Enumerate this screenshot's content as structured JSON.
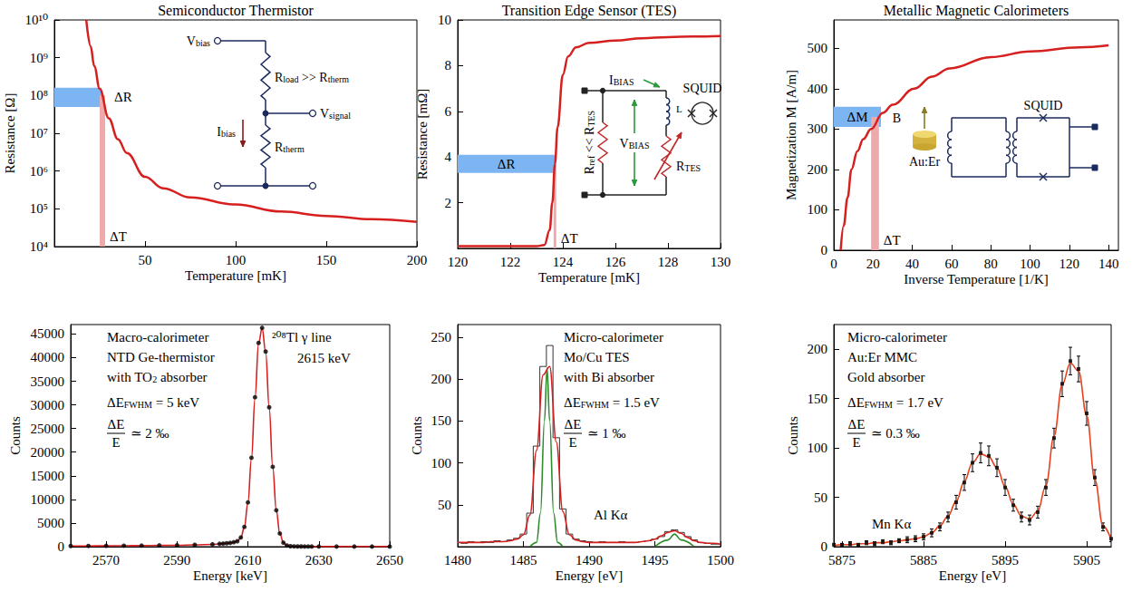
{
  "chart_data": [
    {
      "type": "line",
      "title": "Semiconductor Thermistor",
      "x_label": "Temperature [mK]",
      "y_label": "Resistance [Ω]",
      "log": "y",
      "grid": false,
      "xlim": [
        0,
        200
      ],
      "xticks": [
        50,
        100,
        150,
        200
      ],
      "ylim": [
        10000,
        10000000000
      ],
      "yticks": [
        {
          "value": 10000,
          "label": "10⁴"
        },
        {
          "value": 100000,
          "label": "10⁵"
        },
        {
          "value": 1000000,
          "label": "10⁶"
        },
        {
          "value": 10000000,
          "label": "10⁷"
        },
        {
          "value": 100000000,
          "label": "10⁸"
        },
        {
          "value": 1000000000,
          "label": "10⁹"
        },
        {
          "value": 10000000000,
          "label": "10¹⁰"
        }
      ],
      "series": [
        {
          "type": "line",
          "color": "#d62020",
          "x": [
            17.6,
            20,
            22,
            25,
            30,
            35,
            40,
            50,
            60,
            75,
            100,
            125,
            150,
            175,
            200
          ],
          "values": [
            10000000000,
            2000000000,
            600000000,
            150000000,
            25000000,
            7000000,
            3000000,
            700000,
            350000,
            200000,
            130000,
            85000,
            65000,
            53000,
            45000
          ]
        }
      ],
      "bands": [
        {
          "label": "ΔR",
          "color": "#7db4f2",
          "x": [
            0,
            26
          ],
          "y": [
            50000000,
            160000000
          ]
        },
        {
          "label": "ΔT",
          "color": "#eeaaaa",
          "x": [
            25,
            28
          ],
          "y": [
            10000,
            100000000
          ]
        }
      ],
      "labels": [
        [
          "V",
          "bias"
        ],
        [
          "R",
          "load",
          " >> R",
          "therm"
        ],
        [
          "I",
          "bias"
        ],
        [
          "V",
          "signal"
        ],
        [
          "R",
          "therm"
        ]
      ]
    },
    {
      "type": "line",
      "title": "Transition Edge Sensor (TES)",
      "x_label": "Temperature [mK]",
      "y_label": "Resistance [mΩ]",
      "grid": false,
      "xlim": [
        120,
        130
      ],
      "xticks": [
        120,
        122,
        124,
        126,
        128,
        130
      ],
      "ylim": [
        0,
        10
      ],
      "yticks": [
        2,
        4,
        6,
        8,
        10
      ],
      "series": [
        {
          "type": "line",
          "color": "#d62020",
          "x": [
            120,
            123,
            123.3,
            123.5,
            123.6,
            123.7,
            123.8,
            124,
            124.2,
            124.5,
            125,
            126,
            127,
            128,
            129,
            130
          ],
          "values": [
            0.1,
            0.1,
            0.15,
            0.8,
            2,
            3.7,
            5.3,
            7.6,
            8.4,
            8.8,
            9.0,
            9.1,
            9.2,
            9.25,
            9.28,
            9.3
          ]
        }
      ],
      "bands": [
        {
          "label": "ΔR",
          "color": "#7db4f2",
          "x": [
            120,
            123.7
          ],
          "y": [
            3.3,
            4.1
          ]
        },
        {
          "label": "ΔT",
          "color": "#eeaaaa",
          "x": [
            123.65,
            123.75
          ],
          "y": [
            0,
            3.7
          ]
        }
      ],
      "labels": [
        [
          "I",
          "BIAS"
        ],
        [
          "V",
          "BIAS"
        ],
        [
          "R",
          "ref",
          " << R",
          "TES"
        ],
        [
          "R",
          "TES"
        ],
        [
          "L"
        ],
        [
          "SQUID"
        ]
      ]
    },
    {
      "type": "line",
      "title": "Metallic Magnetic Calorimeters",
      "x_label": "Inverse Temperature [1/K]",
      "y_label": "Magnetization M [A/m]",
      "grid": false,
      "xlim": [
        0,
        145
      ],
      "xticks": [
        0,
        20,
        40,
        60,
        80,
        100,
        120,
        140
      ],
      "ylim": [
        0,
        570
      ],
      "yticks": [
        0,
        100,
        200,
        300,
        400,
        500
      ],
      "series": [
        {
          "type": "line",
          "color": "#d62020",
          "x": [
            3.5,
            5,
            7,
            9,
            12,
            15,
            19,
            25,
            30,
            41,
            50,
            59,
            80,
            100,
            125,
            140
          ],
          "values": [
            0,
            60,
            130,
            200,
            245,
            275,
            300,
            340,
            360,
            400,
            430,
            450,
            478,
            492,
            502,
            507
          ]
        }
      ],
      "bands": [
        {
          "label": "ΔM",
          "color": "#7db4f2",
          "x": [
            0,
            24
          ],
          "y": [
            305,
            355
          ]
        },
        {
          "label": "ΔT",
          "color": "#eeaaaa",
          "x": [
            19,
            23
          ],
          "y": [
            0,
            330
          ]
        }
      ],
      "labels": [
        [
          "B⃗"
        ],
        [
          "Au:Er"
        ],
        [
          "SQUID"
        ]
      ]
    },
    {
      "type": "line",
      "x_label": "Energy [keV]",
      "y_label": "Counts",
      "grid": false,
      "xlim": [
        2560,
        2650
      ],
      "xticks": [
        2570,
        2590,
        2610,
        2630,
        2650
      ],
      "ylim": [
        0,
        47000
      ],
      "yticks": [
        0,
        5000,
        10000,
        15000,
        20000,
        25000,
        30000,
        35000,
        40000,
        45000
      ],
      "series": [
        {
          "type": "line",
          "color": "#d62020",
          "x": [
            2560,
            2565,
            2570,
            2575,
            2580,
            2585,
            2590,
            2595,
            2600,
            2602,
            2603,
            2604,
            2605,
            2606,
            2607,
            2608,
            2609,
            2610,
            2611,
            2612,
            2613,
            2614,
            2615,
            2616,
            2617,
            2618,
            2619,
            2620,
            2621,
            2622,
            2623,
            2624,
            2625,
            2626,
            2627,
            2628,
            2630,
            2635,
            2640,
            2645,
            2650
          ],
          "values": [
            145,
            155,
            175,
            200,
            225,
            255,
            295,
            375,
            490,
            590,
            640,
            710,
            790,
            940,
            1140,
            1900,
            4150,
            9300,
            18700,
            31500,
            43000,
            46200,
            41200,
            29400,
            16800,
            7650,
            2780,
            840,
            245,
            88,
            58,
            48,
            43,
            40,
            38,
            36,
            30,
            25,
            21,
            19,
            16
          ]
        },
        {
          "type": "scatter",
          "color": "#000000",
          "marker": "circle",
          "x": [
            2560,
            2565,
            2570,
            2575,
            2580,
            2585,
            2590,
            2595,
            2600,
            2602,
            2603,
            2604,
            2605,
            2606,
            2607,
            2608,
            2609,
            2610,
            2611,
            2612,
            2613,
            2614,
            2615,
            2616,
            2617,
            2618,
            2619,
            2620,
            2621,
            2622,
            2623,
            2624,
            2625,
            2626,
            2627,
            2628,
            2630,
            2635,
            2640,
            2645,
            2650
          ],
          "values": [
            150,
            160,
            180,
            200,
            230,
            260,
            300,
            380,
            500,
            600,
            650,
            720,
            800,
            950,
            1150,
            1950,
            4190,
            9360,
            18810,
            31620,
            43120,
            46300,
            41300,
            29500,
            16900,
            7700,
            2800,
            850,
            250,
            90,
            60,
            50,
            45,
            40,
            40,
            35,
            30,
            25,
            20,
            20,
            15
          ]
        }
      ],
      "labels": [
        [
          "Macro-calorimeter"
        ],
        [
          "NTD Ge-thermistor"
        ],
        [
          "with TO",
          "2",
          " absorber"
        ],
        [
          "ΔE",
          "FWHM",
          " = 5 keV"
        ],
        [
          "²⁰⁸Tl γ line"
        ],
        [
          "2615 keV"
        ]
      ],
      "ratio": {
        "numerator": "ΔE",
        "denominator": "E",
        "text": "≃ 2 ‰"
      }
    },
    {
      "type": "line",
      "x_label": "Energy [eV]",
      "y_label": "Counts",
      "grid": false,
      "xlim": [
        1480,
        1500
      ],
      "xticks": [
        1480,
        1485,
        1490,
        1495,
        1500
      ],
      "ylim": [
        0,
        265
      ],
      "yticks": [
        50,
        100,
        150,
        200,
        250
      ],
      "series": [
        {
          "type": "step",
          "color": "#333333",
          "x": [
            1480,
            1480.5,
            1481,
            1481.5,
            1482,
            1482.5,
            1483,
            1483.5,
            1484,
            1484.5,
            1485,
            1485.5,
            1486,
            1486.5,
            1487,
            1487.5,
            1488,
            1488.5,
            1489,
            1489.5,
            1490,
            1490.5,
            1491,
            1491.5,
            1492,
            1492.5,
            1493,
            1493.5,
            1494,
            1494.5,
            1495,
            1495.5,
            1496,
            1496.5,
            1497,
            1497.5,
            1498,
            1498.5,
            1499,
            1499.5,
            1500
          ],
          "values": [
            5,
            4,
            6,
            5,
            6,
            5,
            7,
            6,
            8,
            10,
            15,
            40,
            120,
            215,
            240,
            130,
            45,
            15,
            9,
            7,
            6,
            5,
            6,
            5,
            5,
            6,
            5,
            5,
            6,
            7,
            9,
            12,
            18,
            20,
            17,
            12,
            8,
            5,
            4,
            3,
            3
          ]
        },
        {
          "type": "line",
          "color": "#2e8b2e",
          "x": [
            1485.5,
            1486,
            1486.3,
            1486.6,
            1486.8,
            1487,
            1487.3,
            1487.6,
            1488,
            1492,
            1495,
            1496,
            1496.5,
            1497,
            1498
          ],
          "values": [
            0,
            5,
            40,
            150,
            213,
            150,
            40,
            5,
            0,
            null,
            0,
            8,
            15,
            8,
            0
          ]
        },
        {
          "type": "line",
          "color": "#d62020",
          "x": [
            1480,
            1480.5,
            1481,
            1481.5,
            1482,
            1482.5,
            1483,
            1483.5,
            1484,
            1484.5,
            1485,
            1485.5,
            1486,
            1486.5,
            1487,
            1487.5,
            1488,
            1488.5,
            1489,
            1489.5,
            1490,
            1490.5,
            1491,
            1491.5,
            1492,
            1492.5,
            1493,
            1493.5,
            1494,
            1494.5,
            1495,
            1495.5,
            1496,
            1496.5,
            1497,
            1497.5,
            1498,
            1498.5,
            1499,
            1499.5,
            1500
          ],
          "values": [
            5,
            5,
            5,
            5,
            5,
            6,
            6,
            6,
            7,
            9,
            14,
            38,
            115,
            205,
            215,
            125,
            42,
            14,
            8,
            6,
            5,
            5,
            5,
            5,
            5,
            5,
            5,
            5,
            6,
            7,
            9,
            13,
            17,
            19,
            16,
            11,
            7,
            5,
            4,
            4,
            3
          ]
        }
      ],
      "labels": [
        [
          "Micro-calorimeter"
        ],
        [
          "Mo/Cu TES"
        ],
        [
          "with Bi absorber"
        ],
        [
          "ΔE",
          "FWHM",
          " = 1.5 eV"
        ],
        [
          "Al Kα"
        ]
      ],
      "ratio": {
        "numerator": "ΔE",
        "denominator": "E",
        "text": "≃ 1 ‰"
      }
    },
    {
      "type": "line",
      "x_label": "Energy [eV]",
      "y_label": "Counts",
      "grid": false,
      "xlim": [
        5874,
        5908
      ],
      "xticks": [
        5875,
        5885,
        5895,
        5905
      ],
      "ylim": [
        0,
        225
      ],
      "yticks": [
        0,
        50,
        100,
        150,
        200
      ],
      "series": [
        {
          "type": "line",
          "color": "#e8401c",
          "x": [
            5874,
            5875,
            5876,
            5877,
            5878,
            5879,
            5880,
            5881,
            5882,
            5883,
            5884,
            5885,
            5886,
            5887,
            5888,
            5889,
            5890,
            5891,
            5892,
            5893,
            5894,
            5895,
            5896,
            5897,
            5898,
            5899,
            5900,
            5901,
            5902,
            5903,
            5904,
            5905,
            5906,
            5907,
            5908
          ],
          "values": [
            1,
            2,
            2,
            3,
            3,
            4,
            4,
            5,
            6,
            7,
            8,
            10,
            14,
            21,
            31,
            46,
            66,
            85,
            94,
            91,
            80,
            61,
            43,
            31,
            28,
            36,
            62,
            112,
            164,
            186,
            178,
            133,
            68,
            21,
            7
          ]
        },
        {
          "type": "scatter",
          "color": "#000000",
          "marker": "square",
          "x": [
            5874,
            5875,
            5876,
            5877,
            5878,
            5879,
            5880,
            5881,
            5882,
            5883,
            5884,
            5885,
            5886,
            5887,
            5888,
            5889,
            5890,
            5891,
            5892,
            5893,
            5894,
            5895,
            5896,
            5897,
            5898,
            5899,
            5900,
            5901,
            5902,
            5903,
            5904,
            5905,
            5906,
            5907,
            5908
          ],
          "values": [
            2,
            2,
            3,
            2,
            4,
            3,
            5,
            4,
            6,
            7,
            8,
            10,
            14,
            20,
            30,
            45,
            65,
            85,
            95,
            92,
            80,
            60,
            42,
            30,
            27,
            35,
            60,
            110,
            165,
            188,
            180,
            135,
            70,
            20,
            8
          ],
          "errors": [
            1,
            1,
            2,
            1,
            2,
            2,
            2,
            2,
            2,
            3,
            3,
            3,
            4,
            4,
            5,
            7,
            8,
            9,
            10,
            10,
            9,
            8,
            6,
            5,
            5,
            6,
            8,
            10,
            13,
            14,
            13,
            12,
            8,
            4,
            3
          ]
        }
      ],
      "labels": [
        [
          "Micro-calorimeter"
        ],
        [
          "Au:Er MMC"
        ],
        [
          "Gold absorber"
        ],
        [
          "ΔE",
          "FWHM",
          " = 1.7 eV"
        ],
        [
          "Mn Kα"
        ]
      ],
      "ratio": {
        "numerator": "ΔE",
        "denominator": "E",
        "text": "≃ 0.3 ‰"
      }
    }
  ]
}
